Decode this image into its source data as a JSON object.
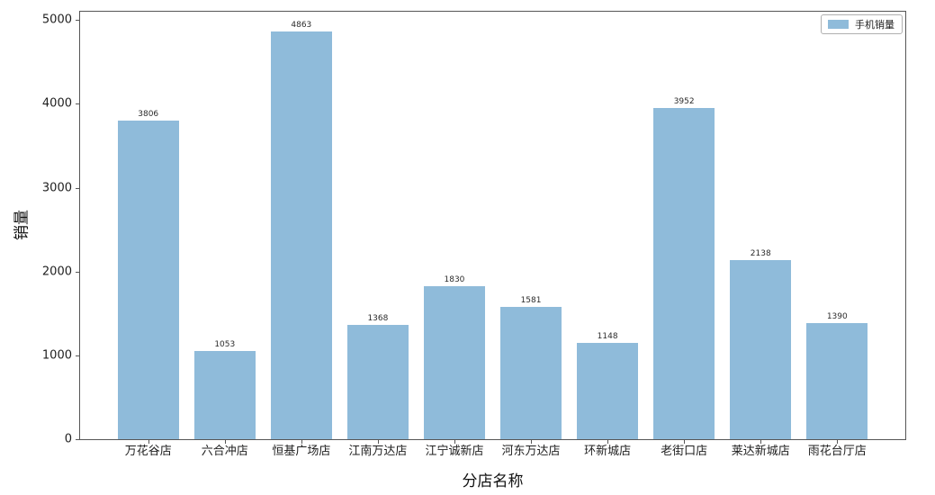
{
  "colors": {
    "bar_fill": "#8FBBDA",
    "axis": "#565656",
    "tick_text": "#1f1f1f",
    "value_label_text": "#2b2b2b",
    "legend_border": "#b0b0b0",
    "background": "#ffffff"
  },
  "chart_data": {
    "type": "bar",
    "title": "",
    "categories": [
      "万花谷店",
      "六合冲店",
      "恒基广场店",
      "江南万达店",
      "江宁诚新店",
      "河东万达店",
      "环新城店",
      "老街口店",
      "莱达新城店",
      "雨花台厅店"
    ],
    "series": [
      {
        "name": "手机销量",
        "values": [
          3806,
          1053,
          4863,
          1368,
          1830,
          1581,
          1148,
          3952,
          2138,
          1390
        ]
      }
    ],
    "xlabel": "分店名称",
    "ylabel": "销量",
    "ylim": [
      0,
      5100
    ],
    "yticks": [
      0,
      1000,
      2000,
      3000,
      4000,
      5000
    ],
    "bar_width_fraction": 0.8,
    "bar_labels_shown": true,
    "grid": false,
    "legend_position": "upper right"
  }
}
